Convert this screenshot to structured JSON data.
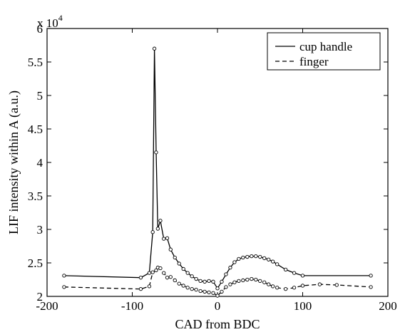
{
  "chart_data": {
    "type": "line",
    "xlabel": "CAD from BDC",
    "ylabel": "LIF intensity within A (a.u.)",
    "xlim": [
      -200,
      200
    ],
    "ylim": [
      20000,
      60000
    ],
    "x_ticks": [
      -200,
      -100,
      0,
      100,
      200
    ],
    "x_tick_labels": [
      "-200",
      "-100",
      "0",
      "100",
      "200"
    ],
    "y_ticks": [
      20000,
      25000,
      30000,
      35000,
      40000,
      45000,
      50000,
      55000,
      60000
    ],
    "y_tick_labels": [
      "2",
      "2.5",
      "3",
      "3.5",
      "4",
      "4.5",
      "5",
      "5.5",
      "6"
    ],
    "y_multiplier_base": "x 10",
    "y_multiplier_exp": "4",
    "grid": false,
    "legend_position": "top-right",
    "series": [
      {
        "name": "cup handle",
        "line_style": "solid",
        "color": "#000000",
        "x": [
          -180,
          -90,
          -80,
          -76,
          -74,
          -72,
          -70,
          -67,
          -63,
          -59,
          -55,
          -50,
          -45,
          -40,
          -35,
          -30,
          -25,
          -20,
          -15,
          -10,
          -5,
          0,
          5,
          10,
          15,
          20,
          25,
          30,
          35,
          40,
          45,
          50,
          55,
          60,
          65,
          70,
          80,
          90,
          100,
          180
        ],
        "y": [
          23100,
          22800,
          23500,
          29600,
          57000,
          41500,
          30100,
          31300,
          28600,
          28700,
          27000,
          25800,
          24900,
          24100,
          23500,
          23000,
          22600,
          22300,
          22200,
          22300,
          22200,
          21200,
          22200,
          23300,
          24300,
          25100,
          25600,
          25800,
          25900,
          26000,
          26000,
          25900,
          25700,
          25500,
          25200,
          24800,
          24000,
          23500,
          23100,
          23100
        ]
      },
      {
        "name": "finger",
        "line_style": "dashed",
        "color": "#000000",
        "x": [
          -180,
          -90,
          -80,
          -76,
          -72,
          -70,
          -67,
          -63,
          -59,
          -55,
          -50,
          -45,
          -40,
          -35,
          -30,
          -25,
          -20,
          -15,
          -10,
          -5,
          0,
          5,
          10,
          15,
          20,
          25,
          30,
          35,
          40,
          45,
          50,
          55,
          60,
          65,
          70,
          80,
          90,
          100,
          120,
          140,
          180
        ],
        "y": [
          21400,
          21100,
          21500,
          23600,
          23900,
          24300,
          24200,
          23500,
          22800,
          22900,
          22400,
          21900,
          21600,
          21300,
          21100,
          21000,
          20800,
          20700,
          20600,
          20500,
          20100,
          20700,
          21400,
          21800,
          22100,
          22300,
          22400,
          22500,
          22600,
          22500,
          22300,
          22100,
          21800,
          21500,
          21300,
          21100,
          21300,
          21600,
          21800,
          21700,
          21400
        ]
      }
    ]
  }
}
